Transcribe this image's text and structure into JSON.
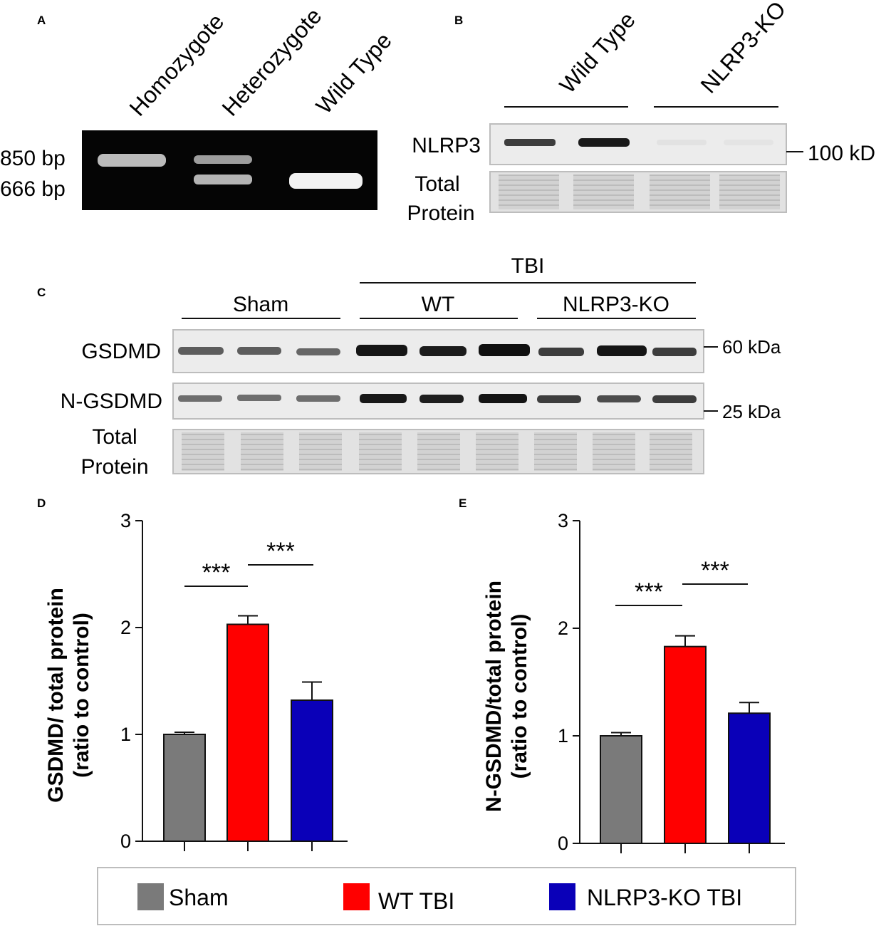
{
  "panel_a": {
    "letter": "A",
    "lanes": [
      "Homozygote",
      "Heterozygote",
      "Wild Type"
    ],
    "markers": [
      "850 bp",
      "666 bp"
    ]
  },
  "panel_b": {
    "letter": "B",
    "groups": [
      "Wild Type",
      "NLRP3-KO"
    ],
    "rows": [
      "NLRP3",
      "Total",
      "Protein"
    ],
    "marker": "100 kD"
  },
  "panel_c": {
    "letter": "C",
    "tbi_label": "TBI",
    "groups": [
      "Sham",
      "WT",
      "NLRP3-KO"
    ],
    "rows": [
      "GSDMD",
      "N-GSDMD",
      "Total",
      "Protein"
    ],
    "markers": [
      "60 kDa",
      "25 kDa"
    ]
  },
  "legend": [
    {
      "label": "Sham",
      "color": "#7a7a7a"
    },
    {
      "label": "WT TBI",
      "color": "#ff0000"
    },
    {
      "label": "NLRP3-KO TBI",
      "color": "#0a00b8"
    }
  ],
  "chart_data": [
    {
      "panel": "D",
      "type": "bar",
      "ylabel_line1": "GSDMD/ total protein",
      "ylabel_line2": "(ratio to control)",
      "ylim": [
        0,
        3
      ],
      "yticks": [
        "0",
        "1",
        "2",
        "3"
      ],
      "categories": [
        "Sham",
        "WT TBI",
        "NLRP3-KO TBI"
      ],
      "values": [
        1.0,
        2.03,
        1.32
      ],
      "errors": [
        0.02,
        0.08,
        0.17
      ],
      "colors": [
        "#7a7a7a",
        "#ff0000",
        "#0a00b8"
      ],
      "significance": [
        "***",
        "***"
      ]
    },
    {
      "panel": "E",
      "type": "bar",
      "ylabel_line1": "N-GSDMD/total protein",
      "ylabel_line2": "(ratio to control)",
      "ylim": [
        0,
        3
      ],
      "yticks": [
        "0",
        "1",
        "2",
        "3"
      ],
      "categories": [
        "Sham",
        "WT TBI",
        "NLRP3-KO TBI"
      ],
      "values": [
        1.0,
        1.83,
        1.21
      ],
      "errors": [
        0.03,
        0.1,
        0.1
      ],
      "colors": [
        "#7a7a7a",
        "#ff0000",
        "#0a00b8"
      ],
      "significance": [
        "***",
        "***"
      ]
    }
  ]
}
